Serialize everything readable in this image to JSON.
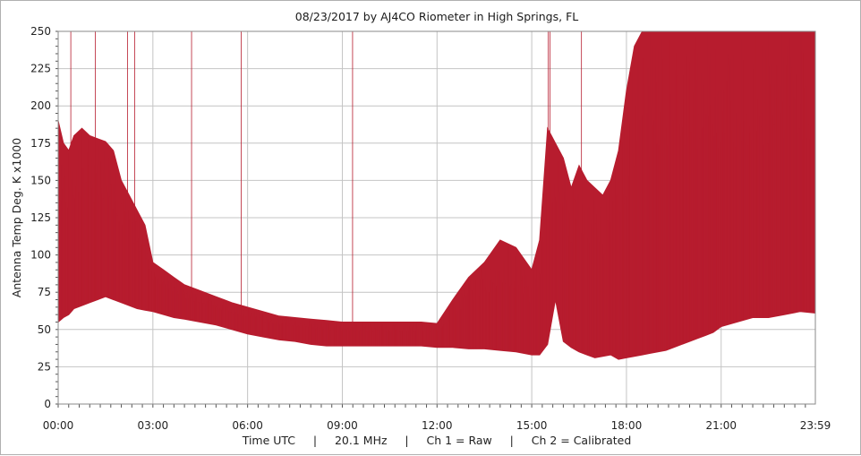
{
  "chart_data": {
    "type": "line",
    "title": "08/23/2017   by   AJ4CO Riometer   in   High Springs, FL",
    "ylabel": "Antenna Temp Deg. K x1000",
    "xlabel": "Time UTC     |     20.1 MHz     |     Ch 1 = Raw     |     Ch 2 = Calibrated",
    "xlim": [
      0,
      1439
    ],
    "ylim": [
      0,
      250
    ],
    "x_tick_labels": [
      "00:00",
      "03:00",
      "06:00",
      "09:00",
      "12:00",
      "15:00",
      "18:00",
      "21:00",
      "23:59"
    ],
    "x_tick_values": [
      0,
      180,
      360,
      540,
      720,
      900,
      1080,
      1260,
      1439
    ],
    "y_tick_values": [
      0,
      25,
      50,
      75,
      100,
      125,
      150,
      175,
      200,
      225,
      250
    ],
    "grid": true,
    "series": [
      {
        "name": "Ch 2 = Calibrated",
        "color": "#b71c2e",
        "x_minutes": [
          0,
          10,
          20,
          30,
          45,
          60,
          75,
          90,
          105,
          120,
          135,
          150,
          165,
          180,
          200,
          220,
          240,
          270,
          300,
          330,
          360,
          390,
          420,
          450,
          480,
          510,
          540,
          570,
          600,
          630,
          660,
          690,
          720,
          750,
          780,
          810,
          840,
          870,
          900,
          915,
          930,
          945,
          960,
          975,
          990,
          1005,
          1020,
          1035,
          1050,
          1065,
          1080,
          1095,
          1110,
          1125,
          1140,
          1155,
          1170,
          1185,
          1200,
          1215,
          1230,
          1245,
          1260,
          1290,
          1320,
          1350,
          1380,
          1410,
          1439
        ],
        "lower": [
          55,
          58,
          60,
          64,
          66,
          68,
          70,
          72,
          70,
          68,
          66,
          64,
          63,
          62,
          60,
          58,
          57,
          55,
          53,
          50,
          47,
          45,
          43,
          42,
          40,
          39,
          39,
          39,
          39,
          39,
          39,
          39,
          38,
          38,
          37,
          37,
          36,
          35,
          33,
          33,
          40,
          70,
          42,
          38,
          35,
          33,
          31,
          32,
          33,
          30,
          31,
          32,
          33,
          34,
          35,
          36,
          38,
          40,
          42,
          44,
          46,
          48,
          52,
          55,
          58,
          58,
          60,
          62,
          61
        ],
        "upper": [
          190,
          175,
          170,
          180,
          185,
          180,
          178,
          176,
          170,
          150,
          140,
          130,
          120,
          95,
          90,
          85,
          80,
          76,
          72,
          68,
          65,
          62,
          59,
          58,
          57,
          56,
          55,
          55,
          55,
          55,
          55,
          55,
          54,
          70,
          85,
          95,
          110,
          105,
          90,
          110,
          185,
          175,
          165,
          145,
          160,
          150,
          145,
          140,
          150,
          170,
          210,
          240,
          250,
          250,
          250,
          250,
          250,
          250,
          250,
          250,
          250,
          250,
          250,
          250,
          250,
          250,
          250,
          250,
          250
        ]
      }
    ]
  }
}
